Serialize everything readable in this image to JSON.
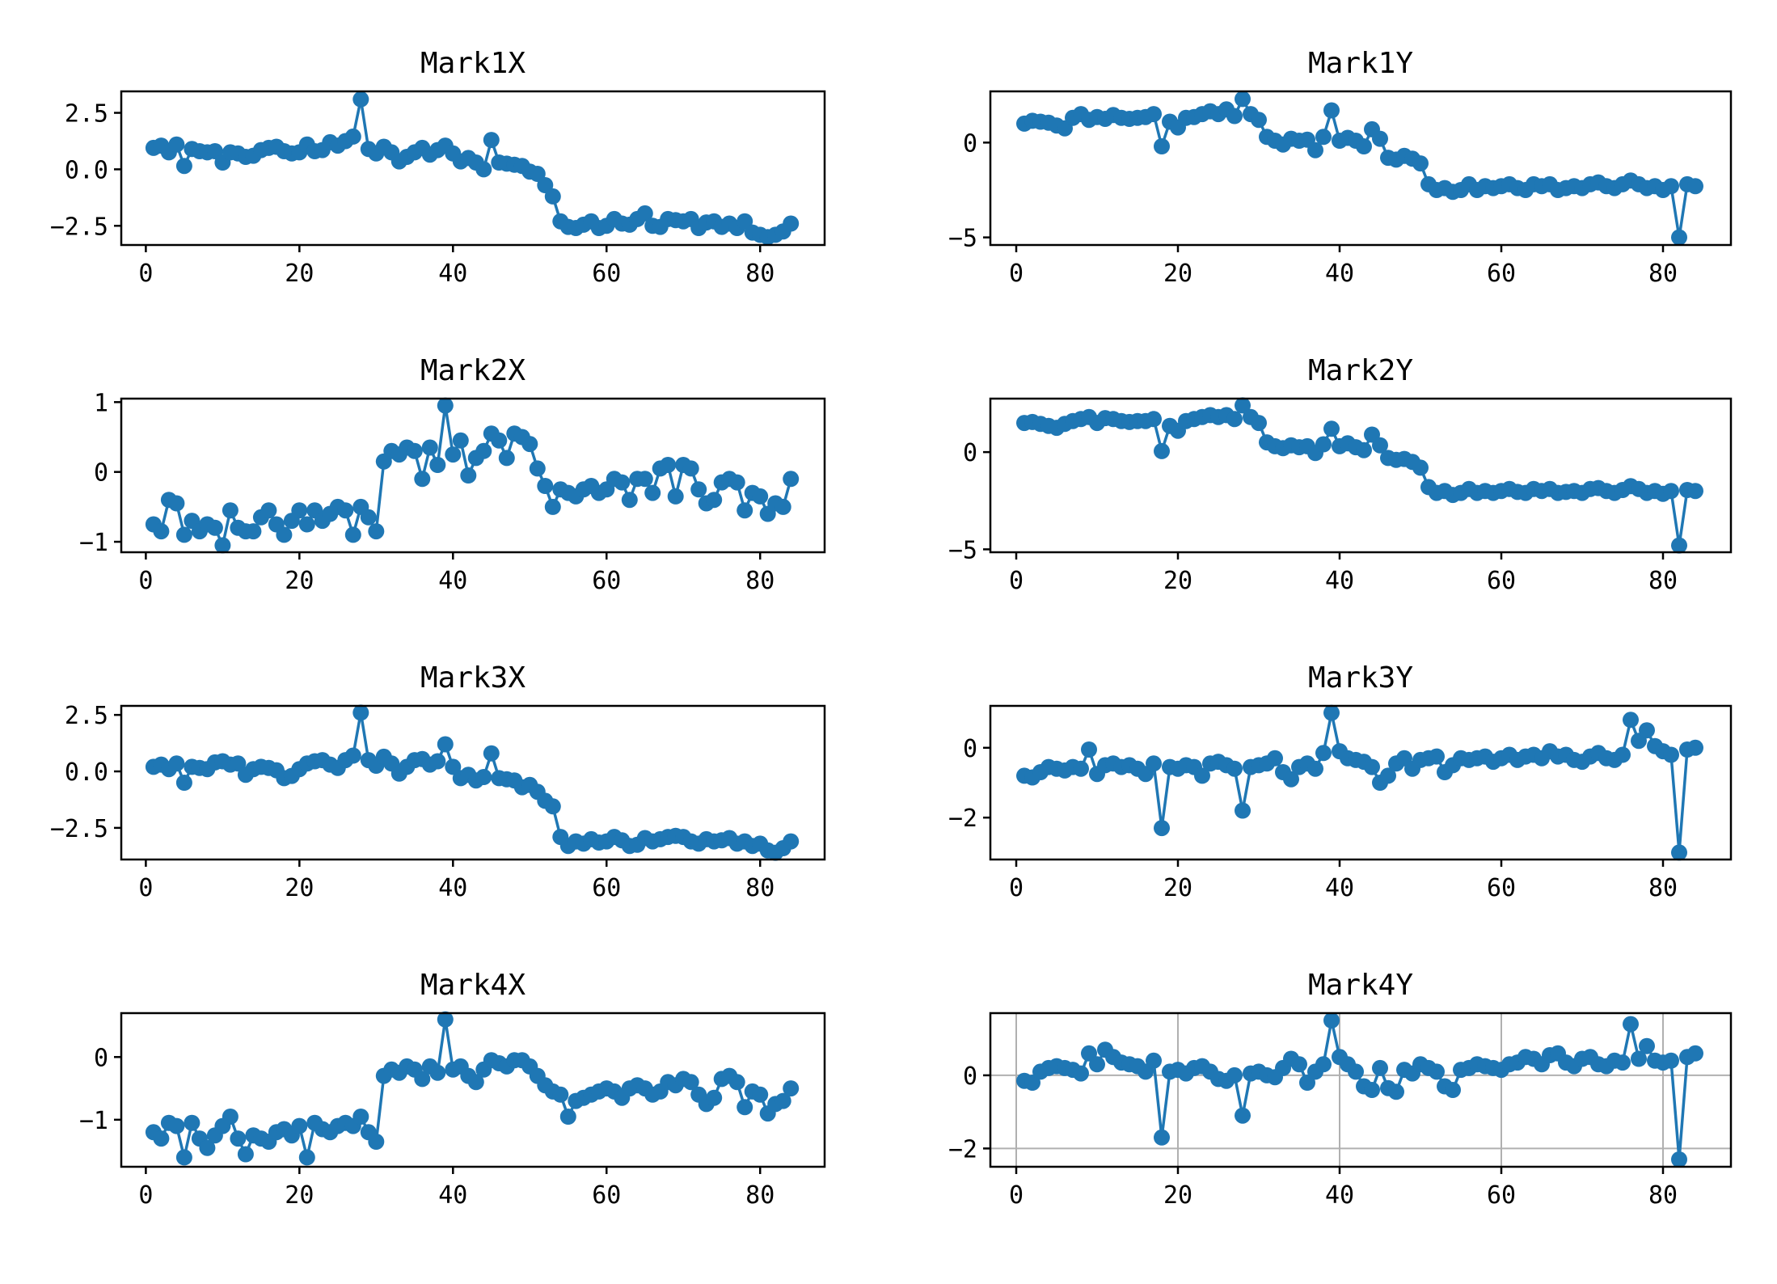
{
  "figure": {
    "background_color": "#ffffff",
    "series_color": "#1f77b4",
    "grid_color": "#b0b0b0",
    "spine_color": "#000000",
    "marker_style": "filled-circle",
    "xtick_labels": [
      "0",
      "20",
      "40",
      "60",
      "80"
    ]
  },
  "chart_data": [
    {
      "type": "line",
      "title": "Mark1X",
      "x_start": 1,
      "xlim": [
        -3.2,
        88.4
      ],
      "ylim": [
        -3.35,
        3.45
      ],
      "xticks": [
        0,
        20,
        40,
        60,
        80
      ],
      "yticks": [
        2.5,
        0.0,
        -2.5
      ],
      "ytick_labels": [
        "2.5",
        "0.0",
        "−2.5"
      ],
      "grid": false,
      "legend": null,
      "values": [
        0.95,
        1.05,
        0.75,
        1.1,
        0.15,
        0.9,
        0.8,
        0.75,
        0.8,
        0.3,
        0.75,
        0.7,
        0.55,
        0.6,
        0.85,
        0.95,
        1.0,
        0.8,
        0.7,
        0.75,
        1.1,
        0.8,
        0.85,
        1.2,
        1.05,
        1.25,
        1.45,
        3.1,
        0.9,
        0.7,
        1.0,
        0.75,
        0.35,
        0.55,
        0.75,
        0.95,
        0.65,
        0.85,
        1.05,
        0.7,
        0.35,
        0.5,
        0.3,
        0.0,
        1.3,
        0.3,
        0.25,
        0.2,
        0.15,
        -0.1,
        -0.2,
        -0.7,
        -1.2,
        -2.3,
        -2.55,
        -2.6,
        -2.45,
        -2.3,
        -2.6,
        -2.5,
        -2.2,
        -2.4,
        -2.45,
        -2.2,
        -1.95,
        -2.5,
        -2.55,
        -2.2,
        -2.25,
        -2.3,
        -2.2,
        -2.6,
        -2.35,
        -2.3,
        -2.55,
        -2.4,
        -2.6,
        -2.3,
        -2.8,
        -2.9,
        -3.0,
        -2.9,
        -2.75,
        -2.4
      ]
    },
    {
      "type": "line",
      "title": "Mark1Y",
      "x_start": 1,
      "xlim": [
        -3.2,
        88.4
      ],
      "ylim": [
        -5.4,
        2.7
      ],
      "xticks": [
        0,
        20,
        40,
        60,
        80
      ],
      "yticks": [
        0,
        -5
      ],
      "ytick_labels": [
        "0",
        "−5"
      ],
      "grid": false,
      "legend": null,
      "values": [
        1.0,
        1.15,
        1.1,
        1.05,
        0.9,
        0.75,
        1.3,
        1.5,
        1.2,
        1.35,
        1.25,
        1.45,
        1.3,
        1.25,
        1.3,
        1.35,
        1.5,
        -0.2,
        1.1,
        0.8,
        1.3,
        1.35,
        1.5,
        1.65,
        1.5,
        1.75,
        1.4,
        2.3,
        1.5,
        1.2,
        0.3,
        0.1,
        -0.1,
        0.2,
        0.1,
        0.15,
        -0.4,
        0.3,
        1.7,
        0.1,
        0.25,
        0.1,
        -0.2,
        0.7,
        0.2,
        -0.8,
        -0.9,
        -0.7,
        -0.85,
        -1.1,
        -2.2,
        -2.5,
        -2.4,
        -2.6,
        -2.5,
        -2.2,
        -2.5,
        -2.3,
        -2.4,
        -2.3,
        -2.2,
        -2.4,
        -2.5,
        -2.2,
        -2.3,
        -2.2,
        -2.5,
        -2.4,
        -2.3,
        -2.4,
        -2.2,
        -2.1,
        -2.3,
        -2.4,
        -2.2,
        -2.0,
        -2.2,
        -2.4,
        -2.3,
        -2.5,
        -2.3,
        -5.0,
        -2.2,
        -2.3
      ]
    },
    {
      "type": "line",
      "title": "Mark2X",
      "x_start": 1,
      "xlim": [
        -3.2,
        88.4
      ],
      "ylim": [
        -1.15,
        1.05
      ],
      "xticks": [
        0,
        20,
        40,
        60,
        80
      ],
      "yticks": [
        1,
        0,
        -1
      ],
      "ytick_labels": [
        "1",
        "0",
        "−1"
      ],
      "grid": false,
      "legend": null,
      "values": [
        -0.75,
        -0.85,
        -0.4,
        -0.45,
        -0.9,
        -0.7,
        -0.85,
        -0.75,
        -0.8,
        -1.05,
        -0.55,
        -0.8,
        -0.85,
        -0.85,
        -0.65,
        -0.55,
        -0.75,
        -0.9,
        -0.7,
        -0.55,
        -0.75,
        -0.55,
        -0.7,
        -0.6,
        -0.5,
        -0.55,
        -0.9,
        -0.5,
        -0.65,
        -0.85,
        0.15,
        0.3,
        0.25,
        0.35,
        0.3,
        -0.1,
        0.35,
        0.1,
        0.95,
        0.25,
        0.45,
        -0.05,
        0.2,
        0.3,
        0.55,
        0.45,
        0.2,
        0.55,
        0.5,
        0.4,
        0.05,
        -0.2,
        -0.5,
        -0.25,
        -0.3,
        -0.35,
        -0.25,
        -0.2,
        -0.3,
        -0.25,
        -0.1,
        -0.15,
        -0.4,
        -0.1,
        -0.1,
        -0.3,
        0.05,
        0.1,
        -0.35,
        0.1,
        0.05,
        -0.25,
        -0.45,
        -0.4,
        -0.15,
        -0.1,
        -0.15,
        -0.55,
        -0.3,
        -0.35,
        -0.6,
        -0.45,
        -0.5,
        -0.1
      ]
    },
    {
      "type": "line",
      "title": "Mark2Y",
      "x_start": 1,
      "xlim": [
        -3.2,
        88.4
      ],
      "ylim": [
        -5.15,
        2.75
      ],
      "xticks": [
        0,
        20,
        40,
        60,
        80
      ],
      "yticks": [
        0,
        -5
      ],
      "ytick_labels": [
        "0",
        "−5"
      ],
      "grid": false,
      "legend": null,
      "values": [
        1.5,
        1.55,
        1.45,
        1.35,
        1.25,
        1.45,
        1.6,
        1.7,
        1.8,
        1.5,
        1.75,
        1.7,
        1.6,
        1.55,
        1.6,
        1.6,
        1.7,
        0.05,
        1.35,
        1.1,
        1.6,
        1.7,
        1.8,
        1.9,
        1.8,
        1.9,
        1.7,
        2.4,
        1.8,
        1.5,
        0.5,
        0.3,
        0.2,
        0.35,
        0.25,
        0.3,
        -0.05,
        0.4,
        1.2,
        0.3,
        0.45,
        0.25,
        0.1,
        0.9,
        0.35,
        -0.3,
        -0.4,
        -0.35,
        -0.5,
        -0.8,
        -1.8,
        -2.1,
        -2.0,
        -2.2,
        -2.1,
        -1.9,
        -2.1,
        -2.0,
        -2.1,
        -2.0,
        -1.9,
        -2.05,
        -2.1,
        -1.9,
        -2.0,
        -1.9,
        -2.1,
        -2.05,
        -2.0,
        -2.1,
        -1.9,
        -1.85,
        -2.0,
        -2.1,
        -1.95,
        -1.75,
        -1.9,
        -2.1,
        -2.0,
        -2.15,
        -2.0,
        -4.8,
        -1.95,
        -2.0
      ]
    },
    {
      "type": "line",
      "title": "Mark3X",
      "x_start": 1,
      "xlim": [
        -3.2,
        88.4
      ],
      "ylim": [
        -3.9,
        2.9
      ],
      "xticks": [
        0,
        20,
        40,
        60,
        80
      ],
      "yticks": [
        2.5,
        0.0,
        -2.5
      ],
      "ytick_labels": [
        "2.5",
        "0.0",
        "−2.5"
      ],
      "grid": false,
      "legend": null,
      "values": [
        0.2,
        0.3,
        0.1,
        0.35,
        -0.5,
        0.2,
        0.15,
        0.1,
        0.4,
        0.45,
        0.3,
        0.35,
        -0.15,
        0.1,
        0.2,
        0.15,
        0.05,
        -0.3,
        -0.2,
        0.1,
        0.35,
        0.45,
        0.5,
        0.3,
        0.15,
        0.5,
        0.7,
        2.6,
        0.5,
        0.25,
        0.65,
        0.35,
        -0.1,
        0.2,
        0.5,
        0.55,
        0.3,
        0.45,
        1.2,
        0.2,
        -0.3,
        -0.15,
        -0.4,
        -0.25,
        0.8,
        -0.3,
        -0.35,
        -0.4,
        -0.7,
        -0.6,
        -0.9,
        -1.3,
        -1.55,
        -2.9,
        -3.3,
        -3.1,
        -3.2,
        -3.0,
        -3.15,
        -3.1,
        -2.9,
        -3.05,
        -3.3,
        -3.25,
        -2.95,
        -3.1,
        -3.0,
        -2.9,
        -2.85,
        -2.9,
        -3.1,
        -3.2,
        -3.0,
        -3.1,
        -3.05,
        -2.95,
        -3.2,
        -3.1,
        -3.3,
        -3.2,
        -3.5,
        -3.6,
        -3.4,
        -3.1
      ]
    },
    {
      "type": "line",
      "title": "Mark3Y",
      "x_start": 1,
      "xlim": [
        -3.2,
        88.4
      ],
      "ylim": [
        -3.2,
        1.2
      ],
      "xticks": [
        0,
        20,
        40,
        60,
        80
      ],
      "yticks": [
        0,
        -2
      ],
      "ytick_labels": [
        "0",
        "−2"
      ],
      "grid": false,
      "legend": null,
      "values": [
        -0.8,
        -0.85,
        -0.7,
        -0.55,
        -0.6,
        -0.65,
        -0.55,
        -0.6,
        -0.05,
        -0.75,
        -0.5,
        -0.45,
        -0.55,
        -0.5,
        -0.6,
        -0.75,
        -0.45,
        -2.3,
        -0.55,
        -0.6,
        -0.5,
        -0.55,
        -0.8,
        -0.45,
        -0.4,
        -0.5,
        -0.6,
        -1.8,
        -0.55,
        -0.5,
        -0.45,
        -0.3,
        -0.7,
        -0.9,
        -0.55,
        -0.45,
        -0.6,
        -0.15,
        1.0,
        -0.1,
        -0.3,
        -0.35,
        -0.4,
        -0.55,
        -1.0,
        -0.8,
        -0.45,
        -0.3,
        -0.6,
        -0.35,
        -0.3,
        -0.25,
        -0.7,
        -0.5,
        -0.3,
        -0.35,
        -0.3,
        -0.25,
        -0.4,
        -0.3,
        -0.2,
        -0.35,
        -0.25,
        -0.2,
        -0.3,
        -0.1,
        -0.25,
        -0.2,
        -0.35,
        -0.4,
        -0.25,
        -0.15,
        -0.3,
        -0.35,
        -0.2,
        0.8,
        0.2,
        0.5,
        0.05,
        -0.1,
        -0.2,
        -3.0,
        -0.05,
        0.0
      ]
    },
    {
      "type": "line",
      "title": "Mark4X",
      "x_start": 1,
      "xlim": [
        -3.2,
        88.4
      ],
      "ylim": [
        -1.75,
        0.7
      ],
      "xticks": [
        0,
        20,
        40,
        60,
        80
      ],
      "yticks": [
        0,
        -1
      ],
      "ytick_labels": [
        "0",
        "−1"
      ],
      "grid": false,
      "legend": null,
      "values": [
        -1.2,
        -1.3,
        -1.05,
        -1.1,
        -1.6,
        -1.05,
        -1.3,
        -1.45,
        -1.25,
        -1.1,
        -0.95,
        -1.3,
        -1.55,
        -1.25,
        -1.3,
        -1.35,
        -1.2,
        -1.15,
        -1.25,
        -1.1,
        -1.6,
        -1.05,
        -1.15,
        -1.2,
        -1.1,
        -1.05,
        -1.1,
        -0.95,
        -1.2,
        -1.35,
        -0.3,
        -0.2,
        -0.25,
        -0.15,
        -0.2,
        -0.35,
        -0.15,
        -0.25,
        0.6,
        -0.2,
        -0.15,
        -0.3,
        -0.4,
        -0.2,
        -0.05,
        -0.1,
        -0.15,
        -0.05,
        -0.05,
        -0.15,
        -0.3,
        -0.45,
        -0.55,
        -0.6,
        -0.95,
        -0.7,
        -0.65,
        -0.6,
        -0.55,
        -0.5,
        -0.55,
        -0.65,
        -0.5,
        -0.45,
        -0.5,
        -0.6,
        -0.55,
        -0.4,
        -0.45,
        -0.35,
        -0.4,
        -0.6,
        -0.75,
        -0.65,
        -0.35,
        -0.3,
        -0.4,
        -0.8,
        -0.55,
        -0.6,
        -0.9,
        -0.75,
        -0.7,
        -0.5
      ]
    },
    {
      "type": "line",
      "title": "Mark4Y",
      "x_start": 1,
      "xlim": [
        -3.2,
        88.4
      ],
      "ylim": [
        -2.5,
        1.7
      ],
      "xticks": [
        0,
        20,
        40,
        60,
        80
      ],
      "yticks": [
        0,
        -2
      ],
      "ytick_labels": [
        "0",
        "−2"
      ],
      "grid": true,
      "legend": null,
      "values": [
        -0.15,
        -0.2,
        0.1,
        0.2,
        0.25,
        0.2,
        0.15,
        0.05,
        0.6,
        0.3,
        0.7,
        0.5,
        0.35,
        0.3,
        0.25,
        0.1,
        0.4,
        -1.7,
        0.1,
        0.15,
        0.05,
        0.2,
        0.25,
        0.1,
        -0.1,
        -0.15,
        0.0,
        -1.1,
        0.05,
        0.1,
        0.0,
        -0.05,
        0.2,
        0.45,
        0.3,
        -0.2,
        0.1,
        0.3,
        1.5,
        0.5,
        0.3,
        0.1,
        -0.3,
        -0.4,
        0.2,
        -0.35,
        -0.45,
        0.15,
        0.05,
        0.3,
        0.2,
        0.1,
        -0.3,
        -0.4,
        0.15,
        0.2,
        0.3,
        0.25,
        0.2,
        0.15,
        0.3,
        0.35,
        0.5,
        0.45,
        0.3,
        0.55,
        0.6,
        0.35,
        0.25,
        0.45,
        0.5,
        0.3,
        0.25,
        0.4,
        0.35,
        1.4,
        0.45,
        0.8,
        0.4,
        0.35,
        0.4,
        -2.3,
        0.5,
        0.6
      ]
    }
  ]
}
